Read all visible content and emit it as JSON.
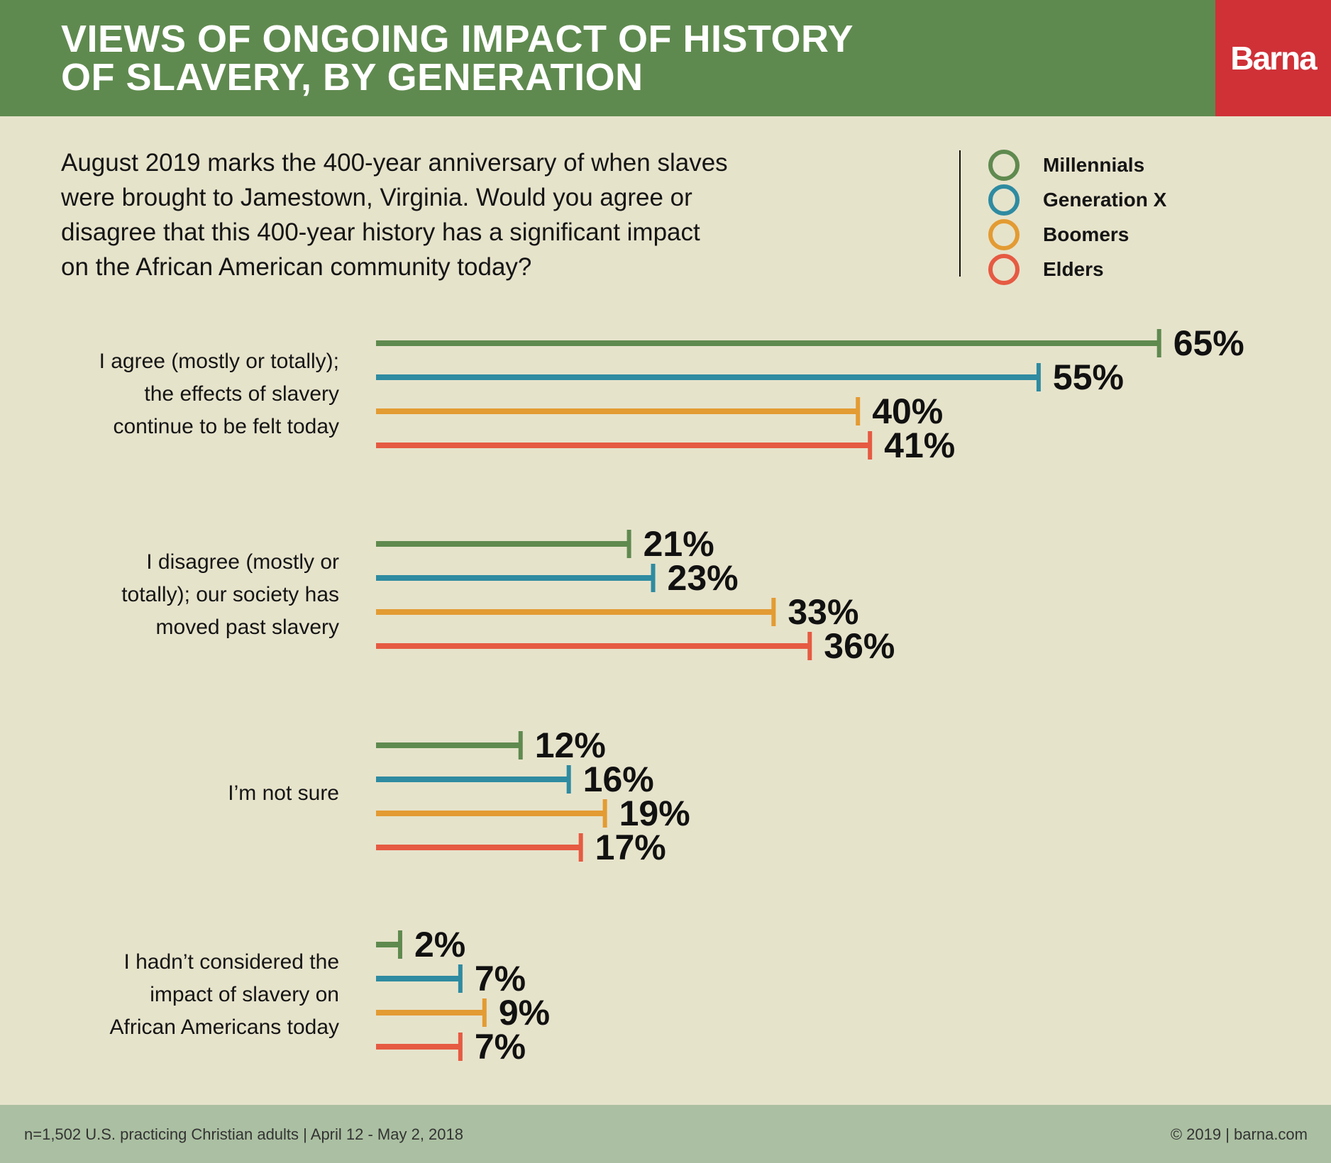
{
  "header": {
    "title_lines": [
      "VIEWS OF ONGOING IMPACT OF HISTORY",
      "OF SLAVERY, BY GENERATION"
    ],
    "brand": "Barna",
    "colors": {
      "header_bg": "#5f8a4f",
      "brand_bg": "#cf3137"
    }
  },
  "question_lines": [
    "August 2019 marks the 400-year anniversary of when slaves",
    "were brought to Jamestown, Virginia. Would you agree or",
    "disagree that this 400-year history has a significant impact",
    "on the African American community today?"
  ],
  "footer": {
    "left": "n=1,502 U.S. practicing Christian adults | April 12 - May 2, 2018",
    "right": "© 2019 | barna.com"
  },
  "chart_data": {
    "type": "bar",
    "orientation": "horizontal",
    "title": "VIEWS OF ONGOING IMPACT OF HISTORY OF SLAVERY, BY GENERATION",
    "legend_position": "top-right",
    "value_suffix": "%",
    "grid": false,
    "xlim": [
      0,
      100
    ],
    "categories": [
      {
        "lines": [
          "I agree (mostly or totally);",
          "the effects of slavery",
          "continue to be felt today"
        ]
      },
      {
        "lines": [
          "I disagree (mostly or",
          "totally); our society has",
          "moved past slavery"
        ]
      },
      {
        "lines": [
          "I’m not sure"
        ]
      },
      {
        "lines": [
          "I hadn’t considered the",
          "impact of slavery on",
          "African Americans today"
        ]
      }
    ],
    "series": [
      {
        "name": "Millennials",
        "color": "#5f8a4f",
        "values": [
          65,
          21,
          12,
          2
        ]
      },
      {
        "name": "Generation X",
        "color": "#2e8ba1",
        "values": [
          55,
          23,
          16,
          7
        ]
      },
      {
        "name": "Boomers",
        "color": "#e39b33",
        "values": [
          40,
          33,
          19,
          9
        ]
      },
      {
        "name": "Elders",
        "color": "#e65a42",
        "values": [
          41,
          36,
          17,
          7
        ]
      }
    ]
  }
}
